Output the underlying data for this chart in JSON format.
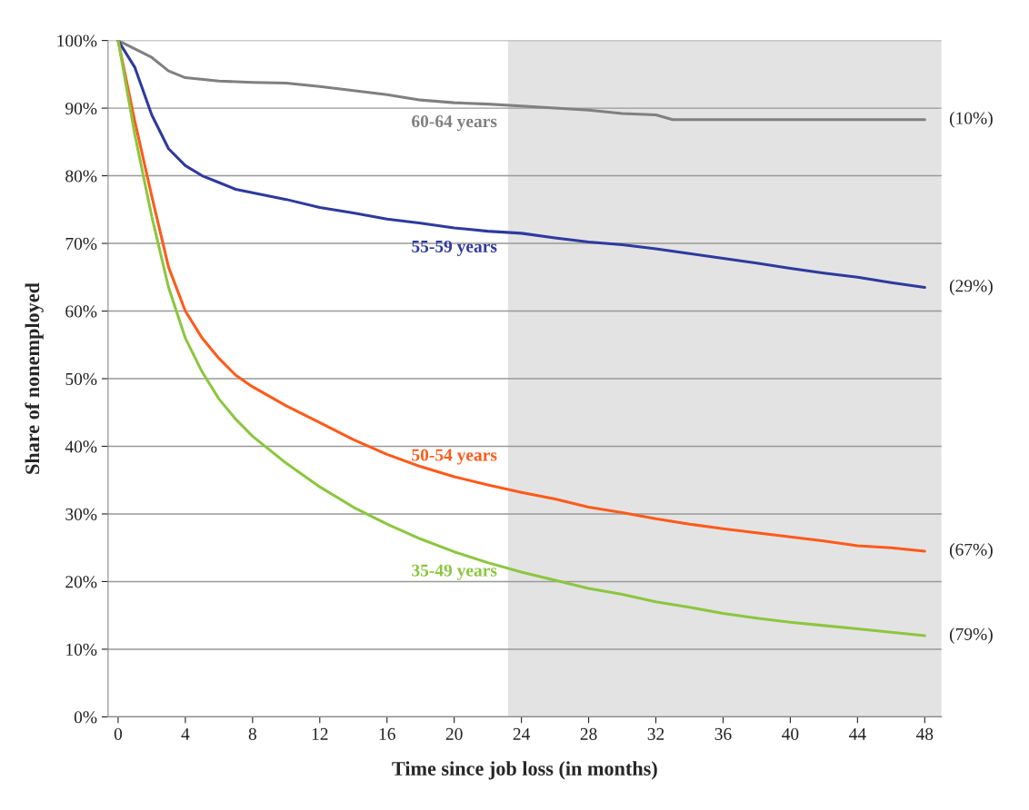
{
  "chart_data": {
    "type": "line",
    "xlabel": "Time since job loss (in months)",
    "ylabel": "Share of nonemployed",
    "xlim": [
      -0.6,
      49
    ],
    "xticks": [
      0,
      4,
      8,
      12,
      16,
      20,
      24,
      28,
      32,
      36,
      40,
      44,
      48
    ],
    "ylim": [
      0,
      100
    ],
    "yticks": [
      {
        "value": 0,
        "label": "0%"
      },
      {
        "value": 10,
        "label": "10%"
      },
      {
        "value": 20,
        "label": "20%"
      },
      {
        "value": 30,
        "label": "30%"
      },
      {
        "value": 40,
        "label": "40%"
      },
      {
        "value": 50,
        "label": "50%"
      },
      {
        "value": 60,
        "label": "60%"
      },
      {
        "value": 70,
        "label": "70%"
      },
      {
        "value": 80,
        "label": "80%"
      },
      {
        "value": 90,
        "label": "90%"
      },
      {
        "value": 100,
        "label": "100%"
      }
    ],
    "grid": "y",
    "legend": false,
    "marker": "none",
    "line_style": "solid",
    "bands": [
      {
        "axis": "x",
        "from": 23.2,
        "to": 49,
        "color": "#e3e3e3"
      }
    ],
    "series": [
      {
        "name": "60-64 years",
        "color": "#808080",
        "x": [
          0,
          2,
          3,
          4,
          6,
          8,
          10,
          12,
          14,
          16,
          18,
          20,
          22,
          24,
          26,
          28,
          30,
          32,
          33,
          48
        ],
        "values": [
          100,
          97.5,
          95.5,
          94.5,
          94,
          93.8,
          93.7,
          93.2,
          92.6,
          92,
          91.2,
          90.8,
          90.6,
          90.3,
          90,
          89.7,
          89.2,
          89,
          88.3,
          88.3
        ]
      },
      {
        "name": "55-59 years",
        "color": "#2e3a9e",
        "x": [
          0,
          1,
          2,
          3,
          4,
          5,
          6,
          7,
          8,
          10,
          12,
          14,
          16,
          18,
          20,
          22,
          24,
          26,
          28,
          30,
          32,
          34,
          36,
          38,
          40,
          42,
          44,
          46,
          48
        ],
        "values": [
          100,
          96,
          89,
          84,
          81.5,
          80,
          79,
          78,
          77.5,
          76.5,
          75.3,
          74.5,
          73.6,
          73,
          72.3,
          71.8,
          71.5,
          70.8,
          70.2,
          69.8,
          69.2,
          68.5,
          67.8,
          67.1,
          66.3,
          65.6,
          65,
          64.2,
          63.5
        ]
      },
      {
        "name": "50-54 years",
        "color": "#ff5a1a",
        "x": [
          0,
          1,
          2,
          3,
          4,
          5,
          6,
          7,
          8,
          10,
          12,
          14,
          16,
          18,
          20,
          22,
          24,
          26,
          28,
          30,
          32,
          34,
          36,
          38,
          40,
          42,
          44,
          46,
          48
        ],
        "values": [
          100,
          88,
          77,
          66.5,
          60,
          56,
          53,
          50.5,
          48.8,
          46,
          43.5,
          41,
          38.8,
          37,
          35.5,
          34.3,
          33.2,
          32.2,
          31,
          30.2,
          29.3,
          28.5,
          27.8,
          27.2,
          26.6,
          26,
          25.3,
          25,
          24.5
        ]
      },
      {
        "name": "35-49 years",
        "color": "#8cc63f",
        "x": [
          0,
          1,
          2,
          3,
          4,
          5,
          6,
          7,
          8,
          10,
          12,
          14,
          16,
          18,
          20,
          22,
          24,
          26,
          28,
          30,
          32,
          34,
          36,
          38,
          40,
          42,
          44,
          46,
          48
        ],
        "values": [
          100,
          86,
          74,
          63.5,
          56,
          51,
          47,
          44,
          41.5,
          37.5,
          34,
          31,
          28.5,
          26.3,
          24.4,
          22.8,
          21.4,
          20.2,
          19,
          18.1,
          17,
          16.2,
          15.3,
          14.6,
          14,
          13.5,
          13,
          12.5,
          12
        ]
      }
    ],
    "annotations": [
      "(10%)",
      "(29%)",
      "(67%)",
      "(79%)"
    ]
  }
}
